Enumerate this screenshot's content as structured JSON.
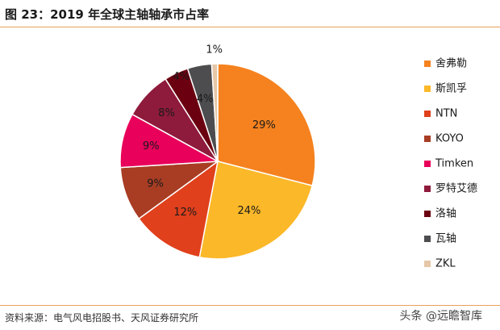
{
  "title": "图 23：2019 年全球主轴轴承市占率",
  "source": "资料来源：电气风电招股书、天风证券研究所",
  "watermark": "头条 @远瞻智库",
  "chart_data": {
    "type": "pie",
    "title": "",
    "legend_position": "right",
    "slices": [
      {
        "name": "舍弗勒",
        "value": 29,
        "label": "29%",
        "color": "#f5821f"
      },
      {
        "name": "斯凯孚",
        "value": 24,
        "label": "24%",
        "color": "#fbb829"
      },
      {
        "name": "NTN",
        "value": 12,
        "label": "12%",
        "color": "#e0401c"
      },
      {
        "name": "KOYO",
        "value": 9,
        "label": "9%",
        "color": "#a83d24"
      },
      {
        "name": "Timken",
        "value": 9,
        "label": "9%",
        "color": "#e8005a"
      },
      {
        "name": "罗特艾德",
        "value": 8,
        "label": "8%",
        "color": "#8e1a3c"
      },
      {
        "name": "洛轴",
        "value": 4,
        "label": "4%",
        "color": "#6b0010"
      },
      {
        "name": "瓦轴",
        "value": 4,
        "label": "4%",
        "color": "#4d4d4f"
      },
      {
        "name": "ZKL",
        "value": 1,
        "label": "1%",
        "color": "#e6c7a8"
      }
    ]
  }
}
